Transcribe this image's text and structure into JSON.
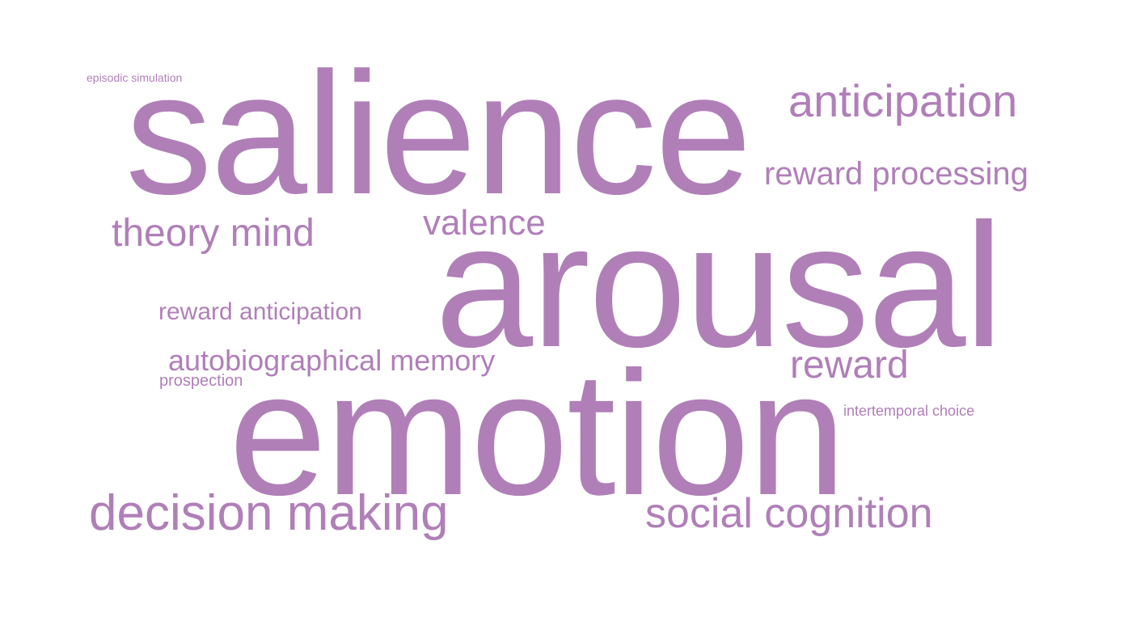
{
  "word_color": "#b07fb8",
  "background_color": "#ffffff",
  "words": {
    "episodic_simulation": "episodic simulation",
    "salience": "salience",
    "anticipation": "anticipation",
    "reward_processing": "reward processing",
    "theory_mind": "theory mind",
    "valence": "valence",
    "arousal": "arousal",
    "reward_anticipation": "reward anticipation",
    "autobiographical_memory": "autobiographical memory",
    "reward": "reward",
    "prospection": "prospection",
    "intertemporal_choice": "intertemporal choice",
    "emotion": "emotion",
    "decision_making": "decision making",
    "social_cognition": "social cognition"
  }
}
